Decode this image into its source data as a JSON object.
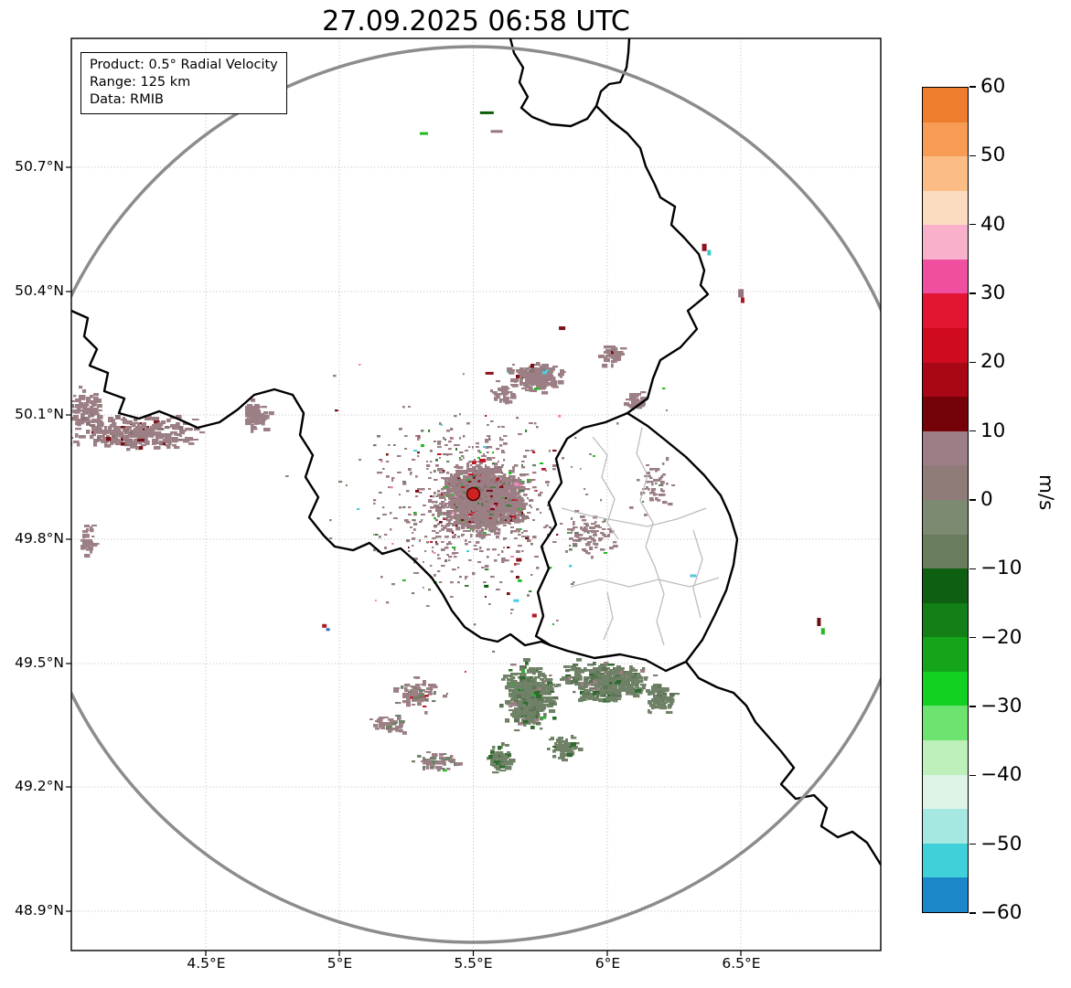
{
  "title": "27.09.2025 06:58 UTC",
  "info_box": {
    "product": "Product: 0.5° Radial Velocity",
    "range": "Range: 125 km",
    "data_source": "Data: RMIB"
  },
  "axes": {
    "y_tick_labels": [
      "50.7°N",
      "50.4°N",
      "50.1°N",
      "49.8°N",
      "49.5°N",
      "49.2°N",
      "48.9°N"
    ],
    "x_tick_labels": [
      "4.5°E",
      "5°E",
      "5.5°E",
      "6°E",
      "6.5°E"
    ]
  },
  "colorbar": {
    "unit_label": "m/s",
    "tick_labels": [
      "60",
      "50",
      "40",
      "30",
      "20",
      "10",
      "0",
      "−10",
      "−20",
      "−30",
      "−40",
      "−50",
      "−60"
    ],
    "segments_top_to_bottom": [
      "#ee7e2e",
      "#f79b55",
      "#fbbd85",
      "#fcdcc1",
      "#f8b0cb",
      "#ef4f9e",
      "#e41433",
      "#d00b20",
      "#a90715",
      "#750109",
      "#9d7e86",
      "#8f7c79",
      "#7d8a72",
      "#697d5d",
      "#0f5f12",
      "#128016",
      "#15a51b",
      "#12d121",
      "#6ce46f",
      "#bdf0bb",
      "#def4e7",
      "#a5e8e2",
      "#40d0da",
      "#1b86c8"
    ]
  },
  "chart_data": {
    "type": "heatmap",
    "title": "27.09.2025 06:58 UTC",
    "product": "0.5° Radial Velocity",
    "range_km": 125,
    "data_source": "RMIB",
    "units": "m/s",
    "colorbar_range": [
      -60,
      60
    ],
    "colorbar_tick_step": 10,
    "grid": "dotted",
    "x_axis": {
      "ticks_deg_east": [
        4.5,
        5.0,
        5.5,
        6.0,
        6.5
      ]
    },
    "y_axis": {
      "ticks_deg_north": [
        50.7,
        50.4,
        50.1,
        49.8,
        49.5,
        49.2,
        48.9
      ]
    },
    "radar_site": {
      "lon_deg_east": 5.5,
      "lat_deg_north": 49.91
    },
    "range_ring_km": 125,
    "map_layers": [
      "country borders",
      "Luxembourg district borders",
      "125 km range ring"
    ],
    "echo_clusters": [
      {
        "name": "core-dense",
        "lon": 5.53,
        "lat": 49.905,
        "rx": 0.2,
        "ry": 0.105,
        "n": 1600,
        "size": 4,
        "palette": [
          [
            "#9b7f84",
            86
          ],
          [
            "#8a7376",
            5
          ],
          [
            "#7a1016",
            3
          ],
          [
            "#c21525",
            2
          ],
          [
            "#3c7a3c",
            2
          ],
          [
            "#25b825",
            1
          ],
          [
            "#e88db8",
            1
          ]
        ]
      },
      {
        "name": "core-halo",
        "lon": 5.47,
        "lat": 49.89,
        "rx": 0.43,
        "ry": 0.27,
        "n": 560,
        "size": 2.6,
        "palette": [
          [
            "#9b7f84",
            80
          ],
          [
            "#8a7376",
            8
          ],
          [
            "#7a1016",
            4
          ],
          [
            "#3c7a3c",
            4
          ],
          [
            "#25b825",
            2
          ],
          [
            "#c21525",
            2
          ]
        ]
      },
      {
        "name": "north-east-band",
        "lon": 5.73,
        "lat": 50.195,
        "rx": 0.13,
        "ry": 0.042,
        "n": 210,
        "size": 4,
        "palette": [
          [
            "#9b7f84",
            88
          ],
          [
            "#8a7376",
            6
          ],
          [
            "#25b825",
            2
          ],
          [
            "#7a1016",
            2
          ],
          [
            "#43cfe0",
            2
          ]
        ]
      },
      {
        "name": "north-patch",
        "lon": 5.6,
        "lat": 50.155,
        "rx": 0.05,
        "ry": 0.03,
        "n": 45,
        "size": 4,
        "palette": [
          [
            "#9b7f84",
            100
          ]
        ]
      },
      {
        "name": "ne-small-1",
        "lon": 6.01,
        "lat": 50.25,
        "rx": 0.055,
        "ry": 0.035,
        "n": 60,
        "size": 4,
        "palette": [
          [
            "#9b7f84",
            95
          ],
          [
            "#7a1016",
            5
          ]
        ]
      },
      {
        "name": "ne-small-2",
        "lon": 6.1,
        "lat": 50.14,
        "rx": 0.05,
        "ry": 0.03,
        "n": 35,
        "size": 4,
        "palette": [
          [
            "#9b7f84",
            100
          ]
        ]
      },
      {
        "name": "west-band",
        "lon": 4.23,
        "lat": 50.06,
        "rx": 0.3,
        "ry": 0.052,
        "n": 280,
        "size": 4.2,
        "palette": [
          [
            "#9b7f84",
            92
          ],
          [
            "#8a7376",
            6
          ],
          [
            "#7a1016",
            2
          ]
        ]
      },
      {
        "name": "west-edge-patch",
        "lon": 4.05,
        "lat": 50.12,
        "rx": 0.09,
        "ry": 0.06,
        "n": 90,
        "size": 4.2,
        "palette": [
          [
            "#9b7f84",
            95
          ],
          [
            "#8a7376",
            5
          ]
        ]
      },
      {
        "name": "west-patch",
        "lon": 4.68,
        "lat": 50.105,
        "rx": 0.07,
        "ry": 0.05,
        "n": 70,
        "size": 4.2,
        "palette": [
          [
            "#9b7f84",
            100
          ]
        ]
      },
      {
        "name": "west-low-patch",
        "lon": 4.05,
        "lat": 49.8,
        "rx": 0.045,
        "ry": 0.055,
        "n": 35,
        "size": 4,
        "palette": [
          [
            "#9b7f84",
            100
          ]
        ]
      },
      {
        "name": "lux-nw-scatter",
        "lon": 6.17,
        "lat": 49.93,
        "rx": 0.1,
        "ry": 0.1,
        "n": 55,
        "size": 3,
        "palette": [
          [
            "#9b7f84",
            90
          ],
          [
            "#6f8166",
            10
          ]
        ]
      },
      {
        "name": "east-of-core",
        "lon": 5.92,
        "lat": 49.82,
        "rx": 0.13,
        "ry": 0.07,
        "n": 90,
        "size": 3,
        "palette": [
          [
            "#9b7f84",
            90
          ],
          [
            "#6f8166",
            10
          ]
        ]
      },
      {
        "name": "south-green-main",
        "lon": 5.7,
        "lat": 49.425,
        "rx": 0.115,
        "ry": 0.09,
        "n": 520,
        "size": 4.2,
        "palette": [
          [
            "#6f8166",
            76
          ],
          [
            "#5d7354",
            10
          ],
          [
            "#2e6b2e",
            8
          ],
          [
            "#9b7f84",
            4
          ],
          [
            "#25b825",
            2
          ]
        ]
      },
      {
        "name": "south-green-east",
        "lon": 5.99,
        "lat": 49.46,
        "rx": 0.21,
        "ry": 0.062,
        "n": 400,
        "size": 4.2,
        "palette": [
          [
            "#6f8166",
            80
          ],
          [
            "#5d7354",
            10
          ],
          [
            "#2e6b2e",
            6
          ],
          [
            "#9b7f84",
            4
          ]
        ]
      },
      {
        "name": "south-green-far-east",
        "lon": 6.19,
        "lat": 49.42,
        "rx": 0.07,
        "ry": 0.05,
        "n": 90,
        "size": 4,
        "palette": [
          [
            "#6f8166",
            85
          ],
          [
            "#5d7354",
            15
          ]
        ]
      },
      {
        "name": "south-green-low",
        "lon": 5.83,
        "lat": 49.3,
        "rx": 0.06,
        "ry": 0.035,
        "n": 70,
        "size": 4,
        "palette": [
          [
            "#6f8166",
            90
          ],
          [
            "#2e6b2e",
            10
          ]
        ]
      },
      {
        "name": "south-green-low-2",
        "lon": 5.59,
        "lat": 49.275,
        "rx": 0.05,
        "ry": 0.045,
        "n": 85,
        "size": 4,
        "palette": [
          [
            "#6f8166",
            85
          ],
          [
            "#2e6b2e",
            15
          ]
        ]
      },
      {
        "name": "south-west-scatter",
        "lon": 5.28,
        "lat": 49.43,
        "rx": 0.12,
        "ry": 0.05,
        "n": 90,
        "size": 3.6,
        "palette": [
          [
            "#9b7f84",
            80
          ],
          [
            "#6f8166",
            15
          ],
          [
            "#c21525",
            5
          ]
        ]
      },
      {
        "name": "south-west-row",
        "lon": 5.18,
        "lat": 49.355,
        "rx": 0.1,
        "ry": 0.03,
        "n": 50,
        "size": 3.6,
        "palette": [
          [
            "#9b7f84",
            90
          ],
          [
            "#6f8166",
            10
          ]
        ]
      },
      {
        "name": "bottom-mixed",
        "lon": 5.36,
        "lat": 49.265,
        "rx": 0.11,
        "ry": 0.032,
        "n": 60,
        "size": 3.6,
        "palette": [
          [
            "#9b7f84",
            60
          ],
          [
            "#6f8166",
            35
          ],
          [
            "#25b825",
            5
          ]
        ]
      },
      {
        "name": "ambient-sparse",
        "lon": 5.5,
        "lat": 49.85,
        "rx": 0.85,
        "ry": 0.52,
        "n": 140,
        "size": 2.2,
        "palette": [
          [
            "#9b7f84",
            55
          ],
          [
            "#6f8166",
            18
          ],
          [
            "#c21525",
            7
          ],
          [
            "#25b825",
            7
          ],
          [
            "#43cfe0",
            4
          ],
          [
            "#7a1016",
            5
          ],
          [
            "#ee86b4",
            4
          ]
        ]
      }
    ],
    "isolated_echoes": [
      {
        "lon": 5.3,
        "lat": 50.785,
        "w": 9,
        "h": 3,
        "color": "#25b825"
      },
      {
        "lon": 5.525,
        "lat": 50.835,
        "w": 15,
        "h": 3,
        "color": "#0b5c0b"
      },
      {
        "lon": 5.565,
        "lat": 50.79,
        "w": 13,
        "h": 3,
        "color": "#96767c"
      },
      {
        "lon": 6.355,
        "lat": 50.515,
        "w": 5,
        "h": 8,
        "color": "#8e1220"
      },
      {
        "lon": 6.375,
        "lat": 50.5,
        "w": 4,
        "h": 6,
        "color": "#3ec9c9"
      },
      {
        "lon": 6.49,
        "lat": 50.405,
        "w": 6,
        "h": 9,
        "color": "#96767c"
      },
      {
        "lon": 6.5,
        "lat": 50.385,
        "w": 4,
        "h": 6,
        "color": "#b01828"
      },
      {
        "lon": 5.82,
        "lat": 50.315,
        "w": 7,
        "h": 4,
        "color": "#7a1016"
      },
      {
        "lon": 5.545,
        "lat": 50.205,
        "w": 9,
        "h": 3,
        "color": "#8e1220"
      },
      {
        "lon": 6.31,
        "lat": 49.715,
        "w": 7,
        "h": 3,
        "color": "#54c8e0"
      },
      {
        "lon": 6.785,
        "lat": 49.61,
        "w": 4,
        "h": 9,
        "color": "#6e0f14"
      },
      {
        "lon": 6.8,
        "lat": 49.585,
        "w": 4,
        "h": 7,
        "color": "#25b825"
      },
      {
        "lon": 4.935,
        "lat": 49.595,
        "w": 5,
        "h": 4,
        "color": "#b01828"
      },
      {
        "lon": 4.95,
        "lat": 49.585,
        "w": 4,
        "h": 3,
        "color": "#2b6fc0"
      },
      {
        "lon": 5.72,
        "lat": 49.62,
        "w": 5,
        "h": 4,
        "color": "#b01828"
      },
      {
        "lon": 5.65,
        "lat": 49.655,
        "w": 6,
        "h": 3,
        "color": "#43cfe0"
      },
      {
        "lon": 5.66,
        "lat": 49.755,
        "w": 6,
        "h": 4,
        "color": "#8e1220"
      },
      {
        "lon": 5.54,
        "lat": 49.69,
        "w": 5,
        "h": 3,
        "color": "#0b5c0b"
      }
    ]
  }
}
